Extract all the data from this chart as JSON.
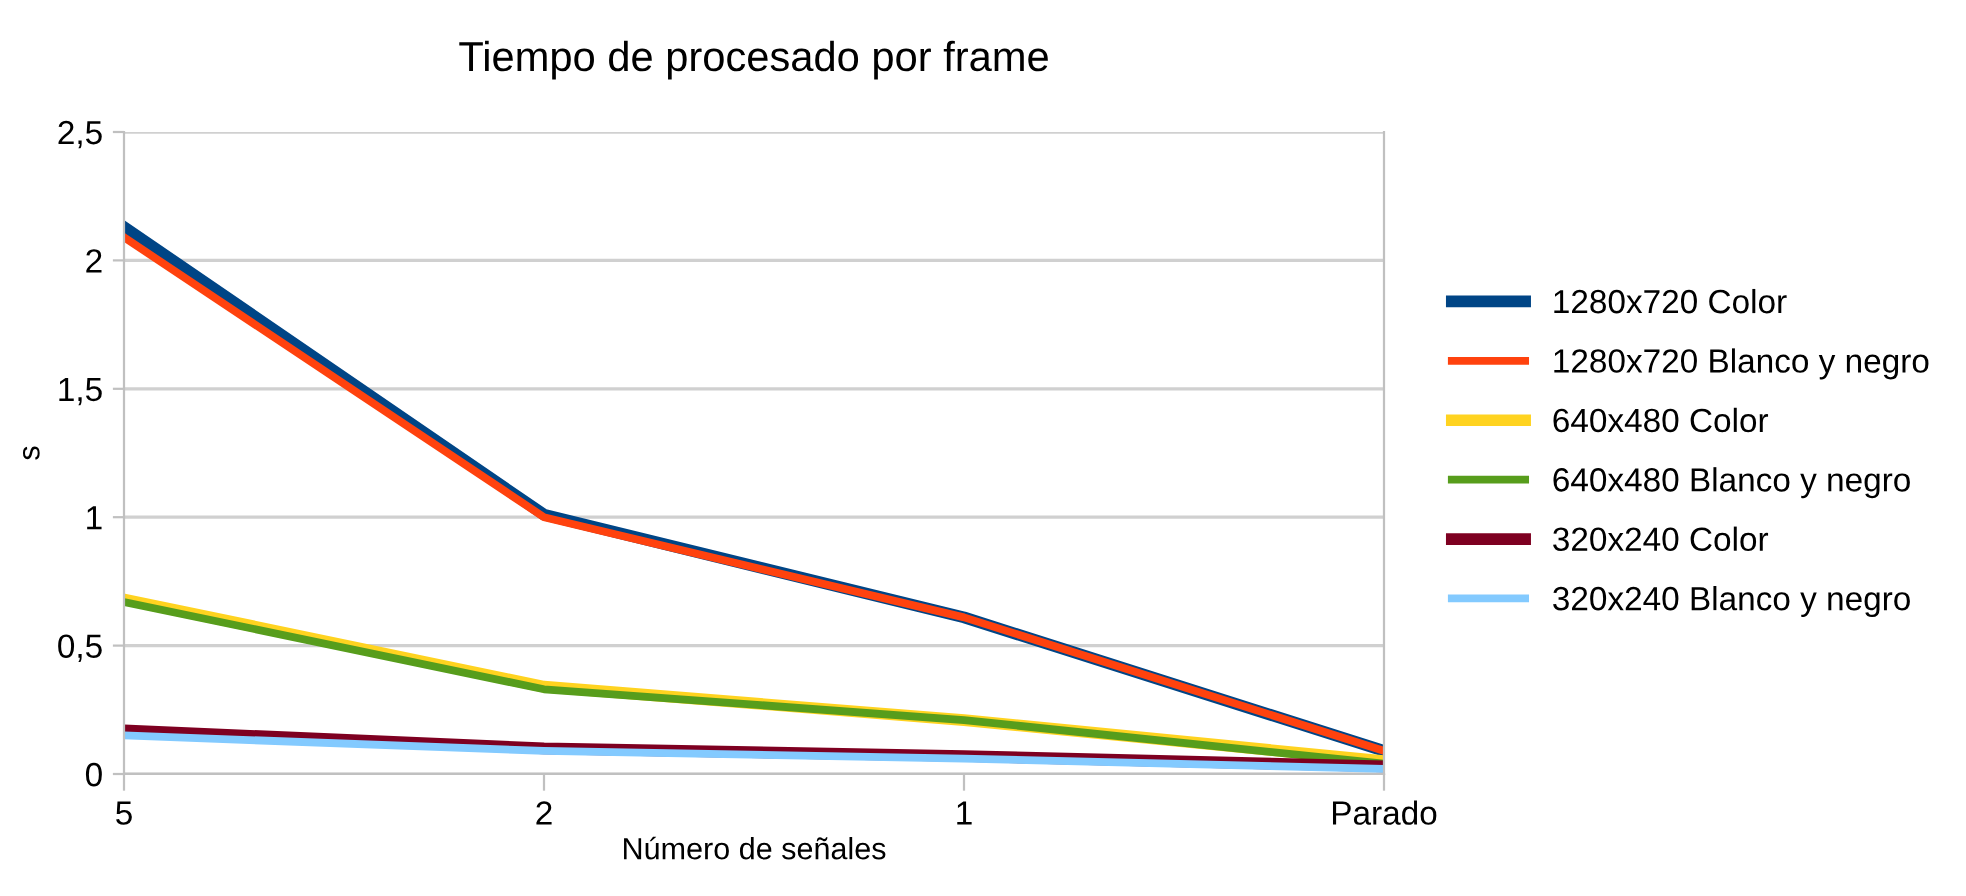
{
  "chart_data": {
    "type": "line",
    "title": "Tiempo de procesado por frame",
    "xlabel": "Número de señales",
    "ylabel": "s",
    "categories": [
      "5",
      "2",
      "1",
      "Parado"
    ],
    "series": [
      {
        "name": "1280x720 Color",
        "color": "#004586",
        "values": [
          2.13,
          1.01,
          0.61,
          0.09
        ]
      },
      {
        "name": "1280x720 Blanco y negro",
        "color": "#ff420e",
        "values": [
          2.09,
          1.0,
          0.61,
          0.09
        ]
      },
      {
        "name": "640x480 Color",
        "color": "#ffd320",
        "values": [
          0.68,
          0.34,
          0.21,
          0.05
        ]
      },
      {
        "name": "640x480 Blanco y negro",
        "color": "#579d1c",
        "values": [
          0.67,
          0.33,
          0.21,
          0.04
        ]
      },
      {
        "name": "320x240 Color",
        "color": "#7e0021",
        "values": [
          0.17,
          0.1,
          0.07,
          0.03
        ]
      },
      {
        "name": "320x240 Blanco y negro",
        "color": "#83caff",
        "values": [
          0.15,
          0.09,
          0.06,
          0.02
        ]
      }
    ],
    "ylim": [
      0,
      2.5
    ],
    "yticks": [
      0,
      {
        "value": 0.5,
        "label": "0,5"
      },
      1,
      {
        "value": 1.5,
        "label": "1,5"
      },
      2,
      {
        "value": 2.5,
        "label": "2,5"
      }
    ],
    "grid": "y",
    "legend": "right",
    "marker": "none",
    "line_style": "solid"
  }
}
